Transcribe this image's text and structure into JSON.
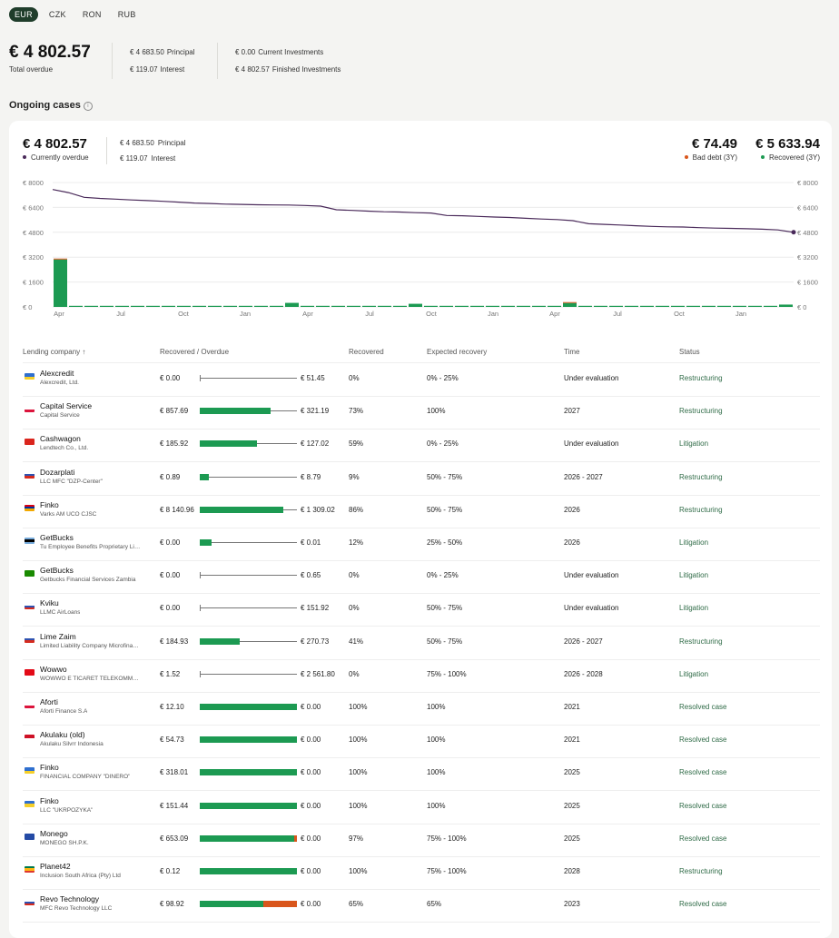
{
  "currencies": [
    "EUR",
    "CZK",
    "RON",
    "RUB"
  ],
  "summary": {
    "total": "€ 4 802.57",
    "total_label": "Total overdue",
    "principal_value": "€ 4 683.50",
    "principal_label": "Principal",
    "interest_value": "€ 119.07",
    "interest_label": "Interest",
    "current_value": "€ 0.00",
    "current_label": "Current Investments",
    "finished_value": "€ 4 802.57",
    "finished_label": "Finished Investments"
  },
  "section_title": "Ongoing cases",
  "card": {
    "overdue": "€ 4 802.57",
    "overdue_label": "Currently overdue",
    "principal_value": "€ 4 683.50",
    "principal_label": "Principal",
    "interest_value": "€ 119.07",
    "interest_label": "Interest",
    "bad_debt": "€ 74.49",
    "bad_debt_label": "Bad debt (3Y)",
    "recovered": "€ 5 633.94",
    "recovered_label": "Recovered (3Y)"
  },
  "colors": {
    "line": "#4a2a5a",
    "recovered": "#1c9a52",
    "bad_debt": "#d9561c",
    "status": "#2f6b47",
    "pill": "#1f3d2b"
  },
  "chart_data": {
    "type": "bar",
    "ylim": [
      0,
      8000
    ],
    "y_ticks": [
      "€ 8000",
      "€ 6400",
      "€ 4800",
      "€ 3200",
      "€ 1600",
      "€ 0"
    ],
    "x_ticks": [
      "Apr",
      "Jul",
      "Oct",
      "Jan",
      "Apr",
      "Jul",
      "Oct",
      "Jan",
      "Apr",
      "Jul",
      "Oct",
      "Jan"
    ],
    "line_values": [
      7550,
      7350,
      7050,
      6980,
      6930,
      6880,
      6840,
      6790,
      6740,
      6680,
      6650,
      6610,
      6590,
      6570,
      6560,
      6550,
      6520,
      6480,
      6250,
      6210,
      6160,
      6120,
      6100,
      6060,
      6040,
      5880,
      5860,
      5820,
      5780,
      5750,
      5700,
      5650,
      5620,
      5550,
      5350,
      5310,
      5270,
      5220,
      5180,
      5150,
      5140,
      5100,
      5070,
      5050,
      5030,
      5000,
      4950,
      4802.57
    ],
    "recovered_values": [
      3050,
      30,
      20,
      60,
      15,
      20,
      30,
      60,
      15,
      10,
      0,
      20,
      10,
      20,
      40,
      260,
      40,
      20,
      30,
      40,
      20,
      50,
      30,
      200,
      30,
      20,
      40,
      30,
      20,
      40,
      30,
      40,
      60,
      250,
      30,
      40,
      60,
      30,
      20,
      40,
      30,
      20,
      60,
      40,
      30,
      20,
      20,
      150
    ],
    "bad_debt_values": [
      60,
      0,
      0,
      0,
      0,
      0,
      0,
      0,
      0,
      0,
      0,
      0,
      0,
      0,
      0,
      0,
      0,
      0,
      0,
      0,
      0,
      0,
      0,
      0,
      0,
      0,
      0,
      0,
      0,
      0,
      0,
      0,
      0,
      30,
      0,
      0,
      0,
      0,
      0,
      0,
      0,
      0,
      0,
      0,
      0,
      0,
      0,
      0
    ],
    "grid": true
  },
  "table": {
    "headers": {
      "company": "Lending company ↑",
      "recovered_overdue": "Recovered / Overdue",
      "recovered": "Recovered",
      "expected": "Expected recovery",
      "time": "Time",
      "status": "Status"
    },
    "rows": [
      {
        "name": "Alexcredit",
        "legal": "Alexcredit, Ltd.",
        "flag": "ua",
        "recovered": "€ 0.00",
        "overdue": "€ 51.45",
        "pct": "0%",
        "fill": 0,
        "bad": 0,
        "expected": "0% - 25%",
        "time": "Under evaluation",
        "status": "Restructuring"
      },
      {
        "name": "Capital Service",
        "legal": "Capital Service",
        "flag": "pl",
        "recovered": "€ 857.69",
        "overdue": "€ 321.19",
        "pct": "73%",
        "fill": 0.73,
        "bad": 0,
        "expected": "100%",
        "time": "2027",
        "status": "Restructuring"
      },
      {
        "name": "Cashwagon",
        "legal": "Lendtech Co., Ltd.",
        "flag": "vn",
        "recovered": "€ 185.92",
        "overdue": "€ 127.02",
        "pct": "59%",
        "fill": 0.59,
        "bad": 0,
        "expected": "0% - 25%",
        "time": "Under evaluation",
        "status": "Litigation"
      },
      {
        "name": "Dozarplati",
        "legal": "LLC MFC \"DZP-Center\"",
        "flag": "ru",
        "recovered": "€ 0.89",
        "overdue": "€ 8.79",
        "pct": "9%",
        "fill": 0.09,
        "bad": 0,
        "expected": "50% - 75%",
        "time": "2026 - 2027",
        "status": "Restructuring"
      },
      {
        "name": "Finko",
        "legal": "Varks AM UCO CJSC",
        "flag": "am",
        "recovered": "€ 8 140.96",
        "overdue": "€ 1 309.02",
        "pct": "86%",
        "fill": 0.86,
        "bad": 0,
        "expected": "50% - 75%",
        "time": "2026",
        "status": "Restructuring"
      },
      {
        "name": "GetBucks",
        "legal": "Tu Employee Benefits Proprietary Limited",
        "flag": "bw",
        "recovered": "€ 0.00",
        "overdue": "€ 0.01",
        "pct": "12%",
        "fill": 0.12,
        "bad": 0,
        "expected": "25% - 50%",
        "time": "2026",
        "status": "Litigation"
      },
      {
        "name": "GetBucks",
        "legal": "Getbucks Financial Services Zambia",
        "flag": "zm",
        "recovered": "€ 0.00",
        "overdue": "€ 0.65",
        "pct": "0%",
        "fill": 0,
        "bad": 0,
        "expected": "0% - 25%",
        "time": "Under evaluation",
        "status": "Litigation"
      },
      {
        "name": "Kviku",
        "legal": "LLMC AirLoans",
        "flag": "ru",
        "recovered": "€ 0.00",
        "overdue": "€ 151.92",
        "pct": "0%",
        "fill": 0,
        "bad": 0,
        "expected": "50% - 75%",
        "time": "Under evaluation",
        "status": "Litigation"
      },
      {
        "name": "Lime Zaim",
        "legal": "Limited Liability Company Microfinance",
        "flag": "ru",
        "recovered": "€ 184.93",
        "overdue": "€ 270.73",
        "pct": "41%",
        "fill": 0.41,
        "bad": 0,
        "expected": "50% - 75%",
        "time": "2026 - 2027",
        "status": "Restructuring"
      },
      {
        "name": "Wowwo",
        "legal": "WOWWO E TİCARET TELEKOMMUNIKASYON",
        "flag": "tr",
        "recovered": "€ 1.52",
        "overdue": "€ 2 561.80",
        "pct": "0%",
        "fill": 0,
        "bad": 0,
        "expected": "75% - 100%",
        "time": "2026 - 2028",
        "status": "Litigation"
      },
      {
        "name": "Aforti",
        "legal": "Aforti Finance S.A",
        "flag": "pl",
        "recovered": "€ 12.10",
        "overdue": "€ 0.00",
        "pct": "100%",
        "fill": 1,
        "bad": 0,
        "expected": "100%",
        "time": "2021",
        "status": "Resolved case"
      },
      {
        "name": "Akulaku (old)",
        "legal": "Akulaku Silvrr Indonesia",
        "flag": "id",
        "recovered": "€ 54.73",
        "overdue": "€ 0.00",
        "pct": "100%",
        "fill": 1,
        "bad": 0,
        "expected": "100%",
        "time": "2021",
        "status": "Resolved case"
      },
      {
        "name": "Finko",
        "legal": "FINANCIAL COMPANY \"DINERO\"",
        "flag": "ua",
        "recovered": "€ 318.01",
        "overdue": "€ 0.00",
        "pct": "100%",
        "fill": 1,
        "bad": 0,
        "expected": "100%",
        "time": "2025",
        "status": "Resolved case"
      },
      {
        "name": "Finko",
        "legal": "LLC \"UKRPOZYKA\"",
        "flag": "ua",
        "recovered": "€ 151.44",
        "overdue": "€ 0.00",
        "pct": "100%",
        "fill": 1,
        "bad": 0,
        "expected": "100%",
        "time": "2025",
        "status": "Resolved case"
      },
      {
        "name": "Monego",
        "legal": "MONEGO SH.P.K.",
        "flag": "xk",
        "recovered": "€ 653.09",
        "overdue": "€ 0.00",
        "pct": "97%",
        "fill": 0.97,
        "bad": 0.03,
        "expected": "75% - 100%",
        "time": "2025",
        "status": "Resolved case"
      },
      {
        "name": "Planet42",
        "legal": "Inclusion South Africa (Pty) Ltd",
        "flag": "za",
        "recovered": "€ 0.12",
        "overdue": "€ 0.00",
        "pct": "100%",
        "fill": 1,
        "bad": 0,
        "expected": "75% - 100%",
        "time": "2028",
        "status": "Restructuring"
      },
      {
        "name": "Revo Technology",
        "legal": "MFC Revo Technology LLC",
        "flag": "ru",
        "recovered": "€ 98.92",
        "overdue": "€ 0.00",
        "pct": "65%",
        "fill": 0.65,
        "bad": 0.35,
        "expected": "65%",
        "time": "2023",
        "status": "Resolved case"
      }
    ]
  }
}
